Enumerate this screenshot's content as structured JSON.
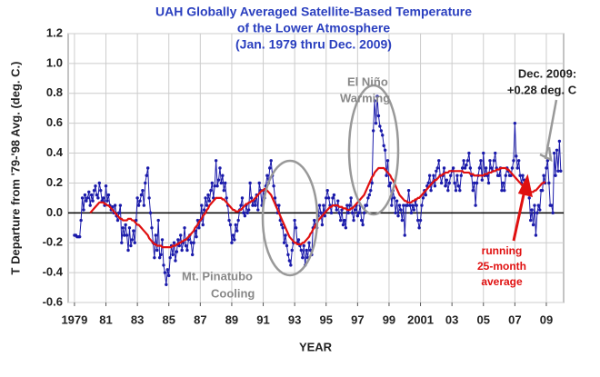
{
  "chart_data": {
    "type": "line",
    "title": [
      "UAH Globally Averaged Satellite-Based Temperature",
      "of the Lower Atmosphere",
      "(Jan. 1979  thru Dec. 2009)"
    ],
    "x_label": "YEAR",
    "y_label": "T Departure from '79-'98 Avg. (deg. C.)",
    "annotations": [
      [
        "El Niño",
        "Warming"
      ],
      [
        "Mt. Pinatubo",
        "Cooling"
      ],
      [
        "Dec. 2009:",
        "+0.28 deg. C"
      ],
      [
        "running",
        "25-month",
        "average"
      ]
    ],
    "xlim": [
      1978.6,
      2010.1
    ],
    "ylim": [
      -0.6,
      1.2
    ],
    "yticks": [
      -0.6,
      -0.4,
      -0.2,
      {
        "value": 0,
        "label": "0.0"
      },
      0.2,
      0.4,
      0.6,
      0.8,
      {
        "value": 1,
        "label": "1.0"
      },
      1.2
    ],
    "xticks": [
      {
        "value": 1979,
        "label": "1979"
      },
      {
        "value": 1981,
        "label": "81"
      },
      {
        "value": 1983,
        "label": "83"
      },
      {
        "value": 1985,
        "label": "85"
      },
      {
        "value": 1987,
        "label": "87"
      },
      {
        "value": 1989,
        "label": "89"
      },
      {
        "value": 1991,
        "label": "91"
      },
      {
        "value": 1993,
        "label": "93"
      },
      {
        "value": 1995,
        "label": "95"
      },
      {
        "value": 1997,
        "label": "97"
      },
      {
        "value": 1999,
        "label": "99"
      },
      {
        "value": 2001,
        "label": "2001"
      },
      {
        "value": 2003,
        "label": "03"
      },
      {
        "value": 2005,
        "label": "05"
      },
      {
        "value": 2007,
        "label": "07"
      },
      {
        "value": 2009,
        "label": "09"
      }
    ],
    "grid": true,
    "x": [
      1979,
      1979.083,
      1979.167,
      1979.25,
      1979.333,
      1979.417,
      1979.5,
      1979.583,
      1979.667,
      1979.75,
      1979.833,
      1979.917,
      1980,
      1980.083,
      1980.167,
      1980.25,
      1980.333,
      1980.417,
      1980.5,
      1980.583,
      1980.667,
      1980.75,
      1980.833,
      1980.917,
      1981,
      1981.083,
      1981.167,
      1981.25,
      1981.333,
      1981.417,
      1981.5,
      1981.583,
      1981.667,
      1981.75,
      1981.833,
      1981.917,
      1982,
      1982.083,
      1982.167,
      1982.25,
      1982.333,
      1982.417,
      1982.5,
      1982.583,
      1982.667,
      1982.75,
      1982.833,
      1982.917,
      1983,
      1983.083,
      1983.167,
      1983.25,
      1983.333,
      1983.417,
      1983.5,
      1983.583,
      1983.667,
      1983.75,
      1983.833,
      1983.917,
      1984,
      1984.083,
      1984.167,
      1984.25,
      1984.333,
      1984.417,
      1984.5,
      1984.583,
      1984.667,
      1984.75,
      1984.833,
      1984.917,
      1985,
      1985.083,
      1985.167,
      1985.25,
      1985.333,
      1985.417,
      1985.5,
      1985.583,
      1985.667,
      1985.75,
      1985.833,
      1985.917,
      1986,
      1986.083,
      1986.167,
      1986.25,
      1986.333,
      1986.417,
      1986.5,
      1986.583,
      1986.667,
      1986.75,
      1986.833,
      1986.917,
      1987,
      1987.083,
      1987.167,
      1987.25,
      1987.333,
      1987.417,
      1987.5,
      1987.583,
      1987.667,
      1987.75,
      1987.833,
      1987.917,
      1988,
      1988.083,
      1988.167,
      1988.25,
      1988.333,
      1988.417,
      1988.5,
      1988.583,
      1988.667,
      1988.75,
      1988.833,
      1988.917,
      1989,
      1989.083,
      1989.167,
      1989.25,
      1989.333,
      1989.417,
      1989.5,
      1989.583,
      1989.667,
      1989.75,
      1989.833,
      1989.917,
      1990,
      1990.083,
      1990.167,
      1990.25,
      1990.333,
      1990.417,
      1990.5,
      1990.583,
      1990.667,
      1990.75,
      1990.833,
      1990.917,
      1991,
      1991.083,
      1991.167,
      1991.25,
      1991.333,
      1991.417,
      1991.5,
      1991.583,
      1991.667,
      1991.75,
      1991.833,
      1991.917,
      1992,
      1992.083,
      1992.167,
      1992.25,
      1992.333,
      1992.417,
      1992.5,
      1992.583,
      1992.667,
      1992.75,
      1992.833,
      1992.917,
      1993,
      1993.083,
      1993.167,
      1993.25,
      1993.333,
      1993.417,
      1993.5,
      1993.583,
      1993.667,
      1993.75,
      1993.833,
      1993.917,
      1994,
      1994.083,
      1994.167,
      1994.25,
      1994.333,
      1994.417,
      1994.5,
      1994.583,
      1994.667,
      1994.75,
      1994.833,
      1994.917,
      1995,
      1995.083,
      1995.167,
      1995.25,
      1995.333,
      1995.417,
      1995.5,
      1995.583,
      1995.667,
      1995.75,
      1995.833,
      1995.917,
      1996,
      1996.083,
      1996.167,
      1996.25,
      1996.333,
      1996.417,
      1996.5,
      1996.583,
      1996.667,
      1996.75,
      1996.833,
      1996.917,
      1997,
      1997.083,
      1997.167,
      1997.25,
      1997.333,
      1997.417,
      1997.5,
      1997.583,
      1997.667,
      1997.75,
      1997.833,
      1997.917,
      1998,
      1998.083,
      1998.167,
      1998.25,
      1998.333,
      1998.417,
      1998.5,
      1998.583,
      1998.667,
      1998.75,
      1998.833,
      1998.917,
      1999,
      1999.083,
      1999.167,
      1999.25,
      1999.333,
      1999.417,
      1999.5,
      1999.583,
      1999.667,
      1999.75,
      1999.833,
      1999.917,
      2000,
      2000.083,
      2000.167,
      2000.25,
      2000.333,
      2000.417,
      2000.5,
      2000.583,
      2000.667,
      2000.75,
      2000.833,
      2000.917,
      2001,
      2001.083,
      2001.167,
      2001.25,
      2001.333,
      2001.417,
      2001.5,
      2001.583,
      2001.667,
      2001.75,
      2001.833,
      2001.917,
      2002,
      2002.083,
      2002.167,
      2002.25,
      2002.333,
      2002.417,
      2002.5,
      2002.583,
      2002.667,
      2002.75,
      2002.833,
      2002.917,
      2003,
      2003.083,
      2003.167,
      2003.25,
      2003.333,
      2003.417,
      2003.5,
      2003.583,
      2003.667,
      2003.75,
      2003.833,
      2003.917,
      2004,
      2004.083,
      2004.167,
      2004.25,
      2004.333,
      2004.417,
      2004.5,
      2004.583,
      2004.667,
      2004.75,
      2004.833,
      2004.917,
      2005,
      2005.083,
      2005.167,
      2005.25,
      2005.333,
      2005.417,
      2005.5,
      2005.583,
      2005.667,
      2005.75,
      2005.833,
      2005.917,
      2006,
      2006.083,
      2006.167,
      2006.25,
      2006.333,
      2006.417,
      2006.5,
      2006.583,
      2006.667,
      2006.75,
      2006.833,
      2006.917,
      2007,
      2007.083,
      2007.167,
      2007.25,
      2007.333,
      2007.417,
      2007.5,
      2007.583,
      2007.667,
      2007.75,
      2007.833,
      2007.917,
      2008,
      2008.083,
      2008.167,
      2008.25,
      2008.333,
      2008.417,
      2008.5,
      2008.583,
      2008.667,
      2008.75,
      2008.833,
      2008.917,
      2009,
      2009.083,
      2009.167,
      2009.25,
      2009.333,
      2009.417,
      2009.5,
      2009.583,
      2009.667,
      2009.75,
      2009.833,
      2009.917
    ],
    "series": [
      {
        "color": "#1a1aaa",
        "markers": true,
        "values": [
          -0.15,
          -0.15,
          -0.16,
          -0.16,
          -0.16,
          -0.05,
          0.1,
          0.02,
          0.12,
          0.08,
          0.1,
          0.14,
          0.05,
          0.12,
          0.08,
          0.15,
          0.18,
          0.12,
          0.1,
          0.2,
          0.15,
          0.08,
          0.1,
          0.05,
          0.18,
          0.08,
          0.12,
          0.05,
          0.02,
          0.04,
          0.0,
          0.05,
          -0.02,
          -0.05,
          0.0,
          0.05,
          -0.2,
          -0.1,
          -0.15,
          -0.08,
          -0.15,
          -0.25,
          -0.1,
          -0.22,
          -0.18,
          -0.12,
          -0.2,
          -0.05,
          0.1,
          0.05,
          0.08,
          0.12,
          0.15,
          0.05,
          0.2,
          0.25,
          0.3,
          0.1,
          0.0,
          -0.1,
          -0.2,
          -0.3,
          -0.15,
          -0.25,
          -0.05,
          -0.3,
          -0.28,
          -0.18,
          -0.35,
          -0.4,
          -0.48,
          -0.38,
          -0.42,
          -0.3,
          -0.22,
          -0.28,
          -0.2,
          -0.32,
          -0.26,
          -0.18,
          -0.22,
          -0.15,
          -0.25,
          -0.2,
          -0.1,
          -0.22,
          -0.25,
          -0.18,
          -0.15,
          -0.2,
          -0.28,
          -0.2,
          -0.12,
          -0.16,
          -0.05,
          -0.1,
          -0.05,
          0.05,
          -0.08,
          0.02,
          0.1,
          0.05,
          0.12,
          0.08,
          0.15,
          0.2,
          0.1,
          0.18,
          0.35,
          0.18,
          0.22,
          0.3,
          0.2,
          0.25,
          0.15,
          0.2,
          0.1,
          0.05,
          -0.05,
          -0.08,
          -0.2,
          -0.15,
          -0.18,
          -0.08,
          -0.12,
          -0.05,
          0.02,
          0.05,
          0.1,
          0.0,
          -0.02,
          0.05,
          0.0,
          0.02,
          0.2,
          0.1,
          0.05,
          0.08,
          0.05,
          0.12,
          0.02,
          0.2,
          0.15,
          0.05,
          0.15,
          0.1,
          0.18,
          0.25,
          0.2,
          0.3,
          0.35,
          0.25,
          0.18,
          0.1,
          0.05,
          0.0,
          0.05,
          -0.05,
          -0.08,
          -0.1,
          -0.2,
          -0.15,
          -0.22,
          -0.28,
          -0.32,
          -0.35,
          -0.25,
          -0.2,
          -0.05,
          -0.1,
          -0.2,
          -0.18,
          -0.22,
          -0.25,
          -0.3,
          -0.22,
          -0.35,
          -0.25,
          -0.3,
          -0.2,
          -0.25,
          -0.28,
          -0.1,
          -0.05,
          -0.08,
          -0.1,
          -0.02,
          0.05,
          0.0,
          -0.08,
          0.05,
          -0.02,
          0.1,
          0.15,
          0.1,
          0.05,
          0.0,
          0.1,
          0.12,
          0.05,
          0.02,
          0.08,
          0.0,
          -0.05,
          0.02,
          -0.08,
          -0.05,
          -0.1,
          0.05,
          0.0,
          0.05,
          0.1,
          0.0,
          -0.05,
          0.02,
          0.05,
          -0.02,
          0.0,
          0.05,
          -0.05,
          -0.08,
          0.0,
          0.05,
          0.05,
          0.1,
          0.12,
          0.15,
          0.2,
          0.55,
          0.75,
          0.6,
          0.78,
          0.65,
          0.58,
          0.55,
          0.52,
          0.45,
          0.42,
          0.25,
          0.35,
          0.18,
          0.2,
          0.05,
          0.15,
          0.1,
          0.0,
          0.08,
          -0.02,
          0.05,
          0.02,
          -0.05,
          0.05,
          -0.15,
          0.05,
          0.05,
          0.15,
          0.05,
          0.0,
          0.05,
          0.02,
          0.08,
          0.05,
          -0.05,
          -0.1,
          -0.05,
          0.05,
          0.1,
          0.15,
          0.12,
          0.18,
          0.2,
          0.25,
          0.15,
          0.2,
          0.25,
          0.18,
          0.28,
          0.3,
          0.35,
          0.25,
          0.2,
          0.25,
          0.3,
          0.18,
          0.22,
          0.15,
          0.2,
          0.25,
          0.28,
          0.3,
          0.2,
          0.15,
          0.25,
          0.18,
          0.15,
          0.25,
          0.3,
          0.35,
          0.3,
          0.32,
          0.35,
          0.4,
          0.3,
          0.25,
          0.15,
          0.2,
          0.05,
          0.2,
          0.25,
          0.3,
          0.35,
          0.22,
          0.4,
          0.25,
          0.3,
          0.25,
          0.2,
          0.35,
          0.3,
          0.28,
          0.35,
          0.4,
          0.3,
          0.25,
          0.25,
          0.3,
          0.15,
          0.2,
          0.15,
          0.25,
          0.3,
          0.28,
          0.25,
          0.25,
          0.3,
          0.35,
          0.6,
          0.38,
          0.3,
          0.35,
          0.25,
          0.2,
          0.25,
          0.22,
          0.2,
          0.15,
          0.2,
          0.1,
          -0.05,
          0.02,
          -0.08,
          0.05,
          -0.15,
          0.0,
          0.05,
          0.02,
          0.15,
          0.15,
          0.25,
          0.2,
          0.3,
          0.35,
          0.2,
          0.05,
          0.05,
          0.0,
          0.4,
          0.25,
          0.42,
          0.28,
          0.48,
          0.28
        ]
      },
      {
        "color": "#e01010",
        "markers": false,
        "values": [
          null,
          null,
          null,
          null,
          null,
          null,
          null,
          null,
          null,
          null,
          null,
          null,
          0.0,
          0.01,
          0.02,
          0.03,
          0.04,
          0.05,
          0.06,
          0.07,
          0.07,
          0.07,
          0.07,
          0.06,
          0.06,
          0.05,
          0.05,
          0.04,
          0.03,
          0.02,
          0.01,
          0.0,
          -0.01,
          -0.02,
          -0.03,
          -0.04,
          -0.04,
          -0.05,
          -0.05,
          -0.05,
          -0.05,
          -0.04,
          -0.04,
          -0.04,
          -0.05,
          -0.05,
          -0.06,
          -0.07,
          -0.08,
          -0.08,
          -0.09,
          -0.1,
          -0.11,
          -0.12,
          -0.13,
          -0.14,
          -0.15,
          -0.17,
          -0.18,
          -0.19,
          -0.2,
          -0.21,
          -0.21,
          -0.22,
          -0.22,
          -0.22,
          -0.22,
          -0.23,
          -0.23,
          -0.23,
          -0.23,
          -0.23,
          -0.23,
          -0.23,
          -0.23,
          -0.22,
          -0.22,
          -0.22,
          -0.21,
          -0.21,
          -0.2,
          -0.2,
          -0.19,
          -0.19,
          -0.18,
          -0.18,
          -0.17,
          -0.16,
          -0.15,
          -0.14,
          -0.13,
          -0.12,
          -0.1,
          -0.09,
          -0.08,
          -0.06,
          -0.05,
          -0.04,
          -0.02,
          -0.01,
          0.0,
          0.02,
          0.03,
          0.05,
          0.06,
          0.07,
          0.08,
          0.09,
          0.1,
          0.1,
          0.1,
          0.1,
          0.1,
          0.09,
          0.09,
          0.08,
          0.07,
          0.06,
          0.05,
          0.04,
          0.03,
          0.02,
          0.02,
          0.01,
          0.01,
          0.01,
          0.02,
          0.02,
          0.03,
          0.04,
          0.05,
          0.06,
          0.06,
          0.07,
          0.07,
          0.08,
          0.08,
          0.09,
          0.1,
          0.11,
          0.12,
          0.13,
          0.14,
          0.15,
          0.15,
          0.16,
          0.16,
          0.15,
          0.14,
          0.13,
          0.12,
          0.1,
          0.08,
          0.06,
          0.04,
          0.02,
          0.0,
          -0.02,
          -0.04,
          -0.06,
          -0.08,
          -0.1,
          -0.12,
          -0.14,
          -0.16,
          -0.17,
          -0.18,
          -0.19,
          -0.2,
          -0.2,
          -0.21,
          -0.21,
          -0.21,
          -0.21,
          -0.2,
          -0.2,
          -0.19,
          -0.18,
          -0.17,
          -0.16,
          -0.14,
          -0.13,
          -0.11,
          -0.1,
          -0.08,
          -0.07,
          -0.05,
          -0.04,
          -0.03,
          -0.02,
          -0.01,
          0.0,
          0.01,
          0.02,
          0.03,
          0.04,
          0.04,
          0.05,
          0.05,
          0.05,
          0.05,
          0.05,
          0.04,
          0.04,
          0.04,
          0.03,
          0.03,
          0.03,
          0.02,
          0.02,
          0.02,
          0.03,
          0.03,
          0.04,
          0.05,
          0.06,
          0.07,
          0.08,
          0.09,
          0.1,
          0.11,
          0.12,
          0.14,
          0.16,
          0.18,
          0.2,
          0.22,
          0.24,
          0.25,
          0.27,
          0.28,
          0.29,
          0.3,
          0.3,
          0.3,
          0.3,
          0.3,
          0.29,
          0.28,
          0.27,
          0.26,
          0.25,
          0.23,
          0.22,
          0.2,
          0.18,
          0.16,
          0.14,
          0.12,
          0.11,
          0.1,
          0.09,
          0.08,
          0.08,
          0.07,
          0.07,
          0.07,
          0.07,
          0.08,
          0.08,
          0.09,
          0.09,
          0.1,
          0.1,
          0.11,
          0.12,
          0.13,
          0.14,
          0.15,
          0.16,
          0.17,
          0.18,
          0.19,
          0.2,
          0.21,
          0.22,
          0.22,
          0.23,
          0.24,
          0.25,
          0.25,
          0.26,
          0.26,
          0.27,
          0.27,
          0.27,
          0.28,
          0.28,
          0.28,
          0.28,
          0.28,
          0.28,
          0.28,
          0.28,
          0.28,
          0.28,
          0.28,
          0.27,
          0.27,
          0.27,
          0.27,
          0.27,
          0.26,
          0.26,
          0.26,
          0.25,
          0.25,
          0.25,
          0.25,
          0.25,
          0.25,
          0.25,
          0.25,
          0.26,
          0.26,
          0.26,
          0.27,
          0.27,
          0.27,
          0.28,
          0.28,
          0.28,
          0.29,
          0.29,
          0.29,
          0.3,
          0.3,
          0.3,
          0.3,
          0.3,
          0.29,
          0.29,
          0.28,
          0.27,
          0.26,
          0.25,
          0.24,
          0.23,
          0.22,
          0.21,
          0.2,
          0.19,
          0.18,
          0.18,
          0.17,
          0.16,
          0.15,
          0.15,
          0.14,
          0.14,
          0.14,
          0.15,
          0.15,
          0.16,
          0.17,
          0.18,
          0.19,
          0.2,
          0.2,
          0.21,
          null,
          null,
          null,
          null,
          null,
          null,
          null,
          null,
          null,
          null,
          null,
          null
        ]
      }
    ]
  }
}
